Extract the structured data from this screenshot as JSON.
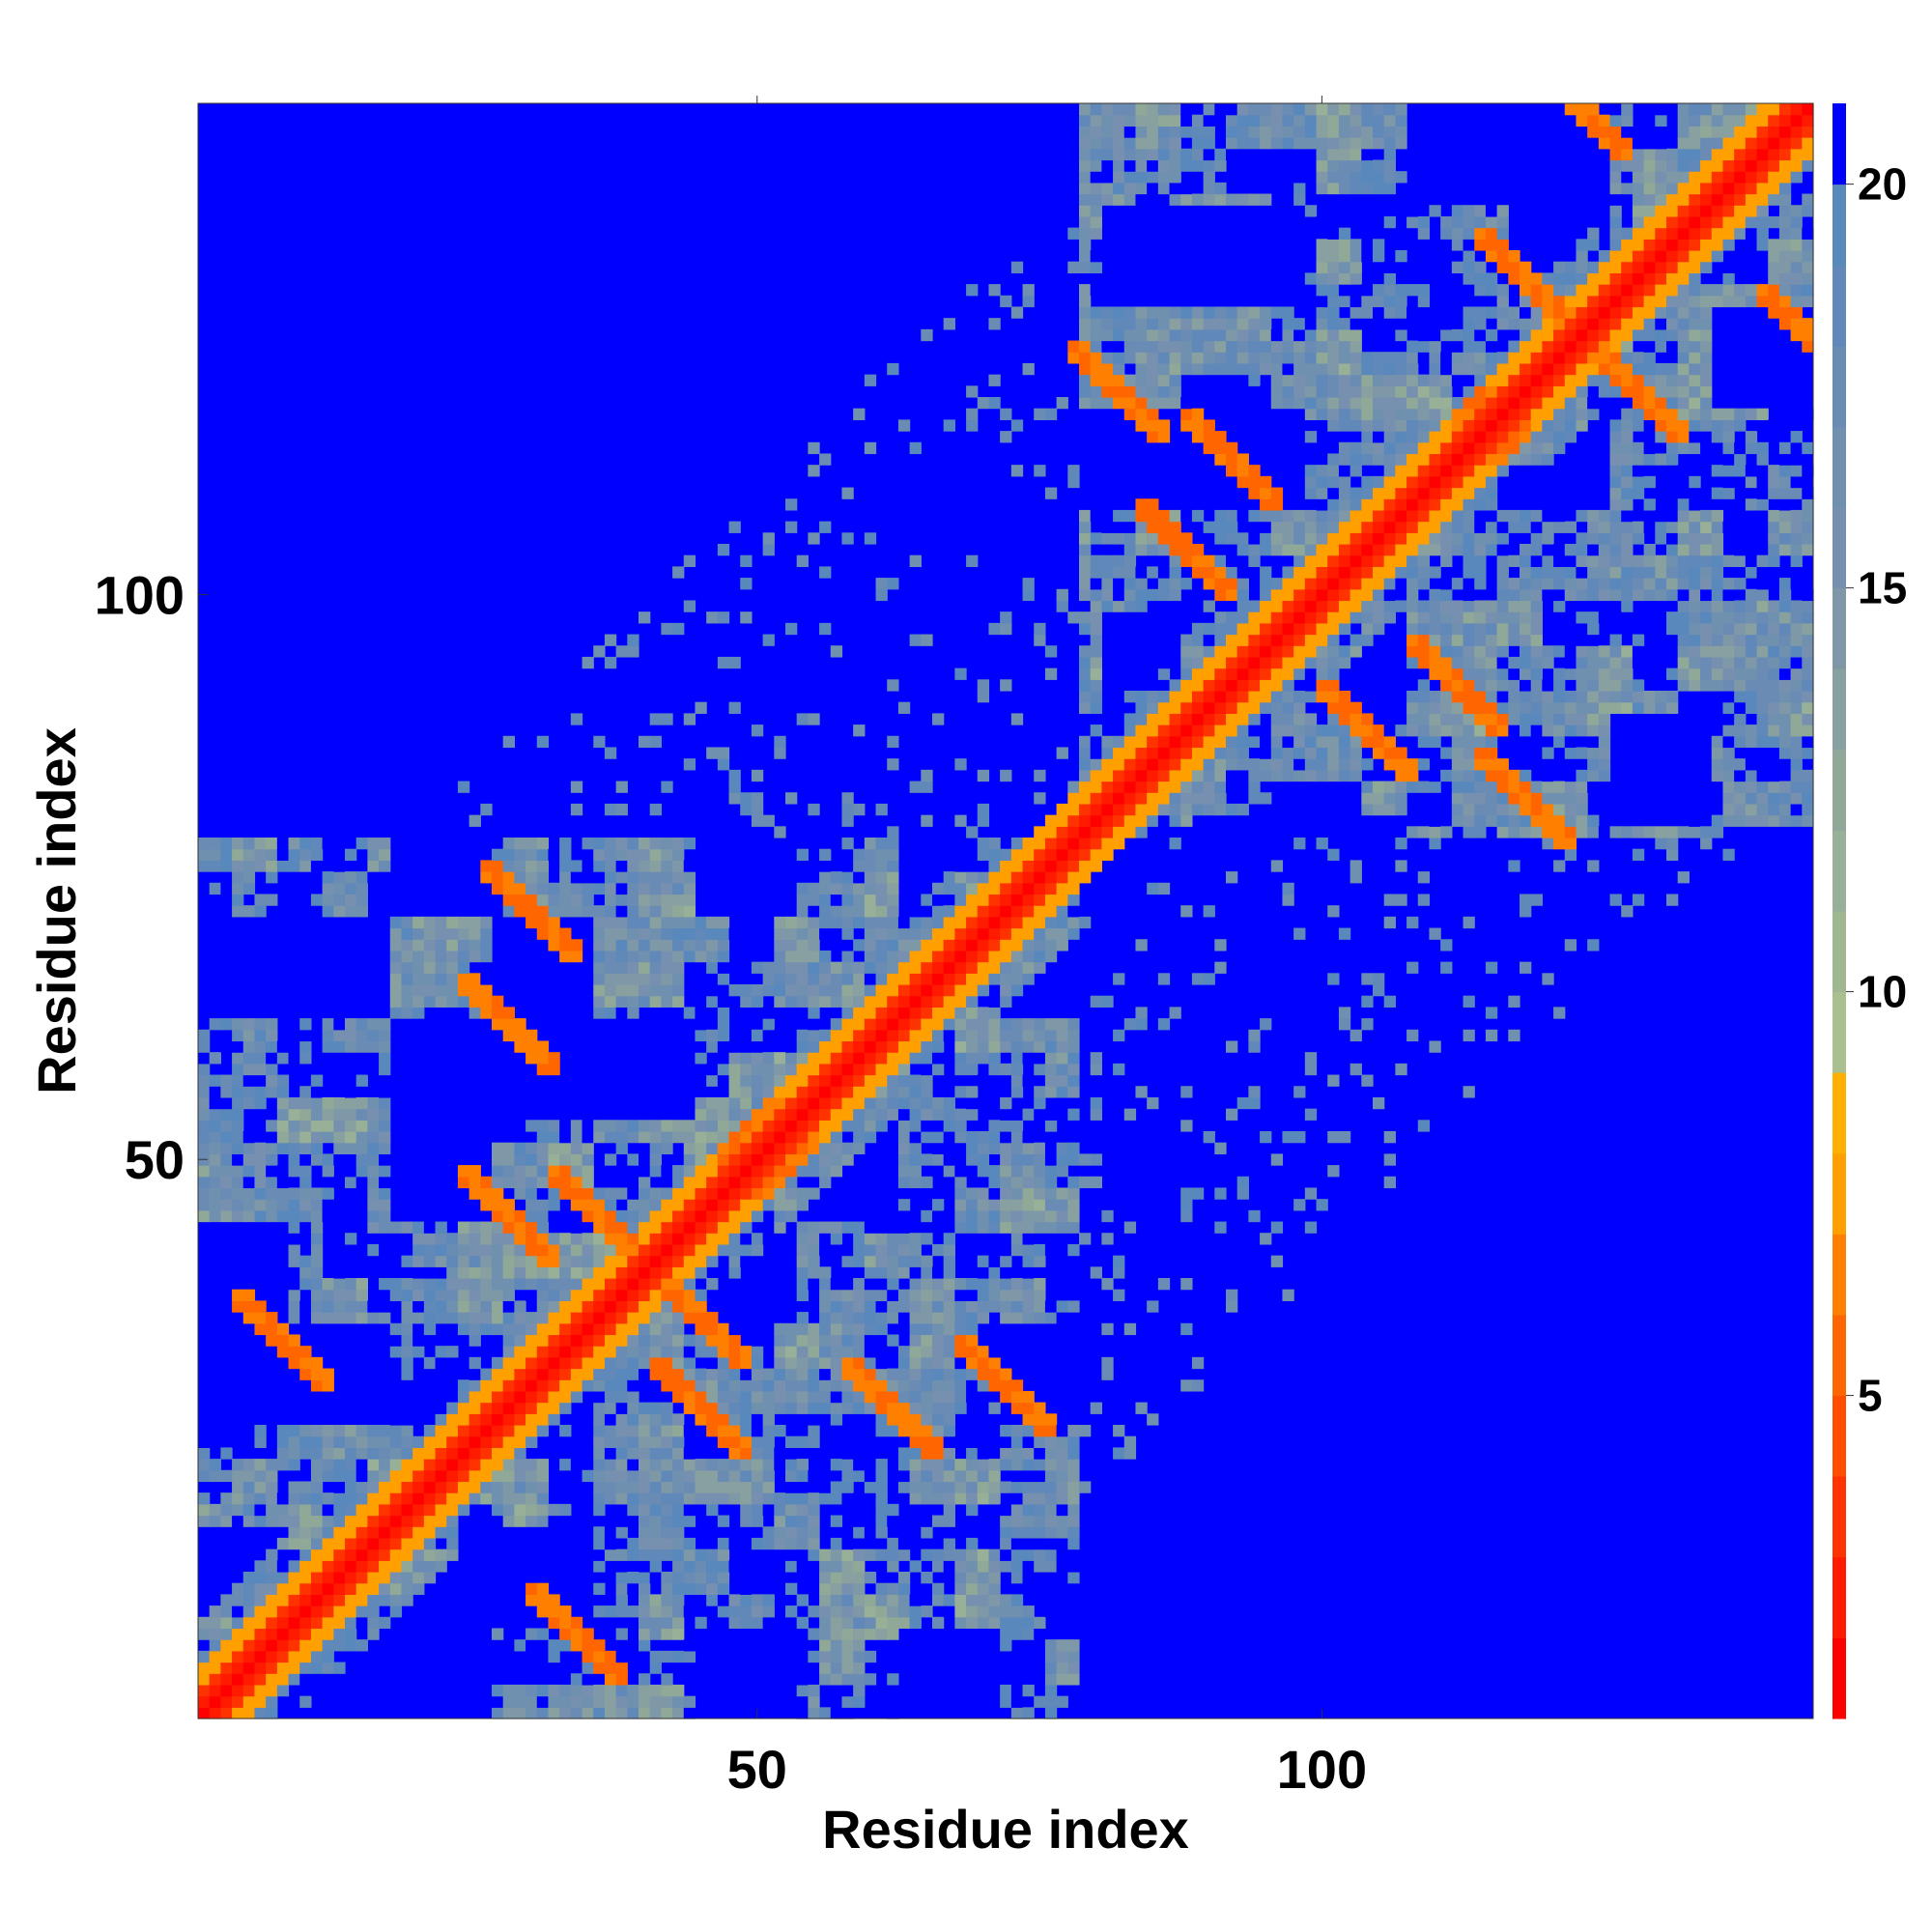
{
  "chart_data": {
    "type": "heatmap",
    "title": "",
    "xlabel": "Residue index",
    "ylabel": "Residue index",
    "n_residues": 143,
    "x_range": [
      1,
      143
    ],
    "y_range": [
      1,
      143
    ],
    "x_ticks": [
      50,
      100
    ],
    "y_ticks": [
      50,
      100
    ],
    "colorbar": {
      "range": [
        1,
        21
      ],
      "ticks": [
        5,
        10,
        15,
        20
      ],
      "levels": [
        {
          "upper": 2,
          "color": "#ff0000"
        },
        {
          "upper": 3,
          "color": "#ff1a00"
        },
        {
          "upper": 4,
          "color": "#ff3300"
        },
        {
          "upper": 5,
          "color": "#ff4d00"
        },
        {
          "upper": 6,
          "color": "#ff6600"
        },
        {
          "upper": 7,
          "color": "#ff8000"
        },
        {
          "upper": 8,
          "color": "#ffa000"
        },
        {
          "upper": 9,
          "color": "#ffb000"
        },
        {
          "upper": 10,
          "color": "#a8c090"
        },
        {
          "upper": 11,
          "color": "#a0b890"
        },
        {
          "upper": 12,
          "color": "#98b098"
        },
        {
          "upper": 13,
          "color": "#90a898"
        },
        {
          "upper": 14,
          "color": "#88a0a0"
        },
        {
          "upper": 15,
          "color": "#7f98a8"
        },
        {
          "upper": 16,
          "color": "#7890b0"
        },
        {
          "upper": 17,
          "color": "#7090b0"
        },
        {
          "upper": 18,
          "color": "#6a8cb4"
        },
        {
          "upper": 19,
          "color": "#6088b8"
        },
        {
          "upper": 20,
          "color": "#5888bc"
        },
        {
          "upper": 21,
          "color": "#0000ff"
        }
      ]
    },
    "description_of_values": "Pairwise residue distance map; red diagonal (distance ~1-3), orange contacts (5-8), green/grey-blue mid range (9-20), blue background (>20)",
    "domains": [
      {
        "start": 1,
        "end": 78
      },
      {
        "start": 80,
        "end": 143
      }
    ],
    "contact_features": [
      {
        "i": 8,
        "j": 34,
        "type": "strand-pair"
      },
      {
        "i": 28,
        "j": 45,
        "type": "strand-pair"
      },
      {
        "i": 36,
        "j": 45,
        "type": "strand-pair"
      },
      {
        "i": 30,
        "j": 72,
        "type": "strand-pair"
      },
      {
        "i": 28,
        "j": 62,
        "type": "strand-pair"
      },
      {
        "i": 47,
        "j": 55,
        "type": "helix"
      },
      {
        "i": 92,
        "j": 112,
        "type": "strand-pair"
      },
      {
        "i": 118,
        "j": 128,
        "type": "strand-pair"
      },
      {
        "i": 82,
        "j": 118,
        "type": "strand-pair"
      },
      {
        "i": 88,
        "j": 104,
        "type": "strand-pair"
      },
      {
        "i": 123,
        "j": 143,
        "type": "strand-pair"
      },
      {
        "i": 112,
        "j": 118,
        "type": "helix"
      }
    ]
  }
}
